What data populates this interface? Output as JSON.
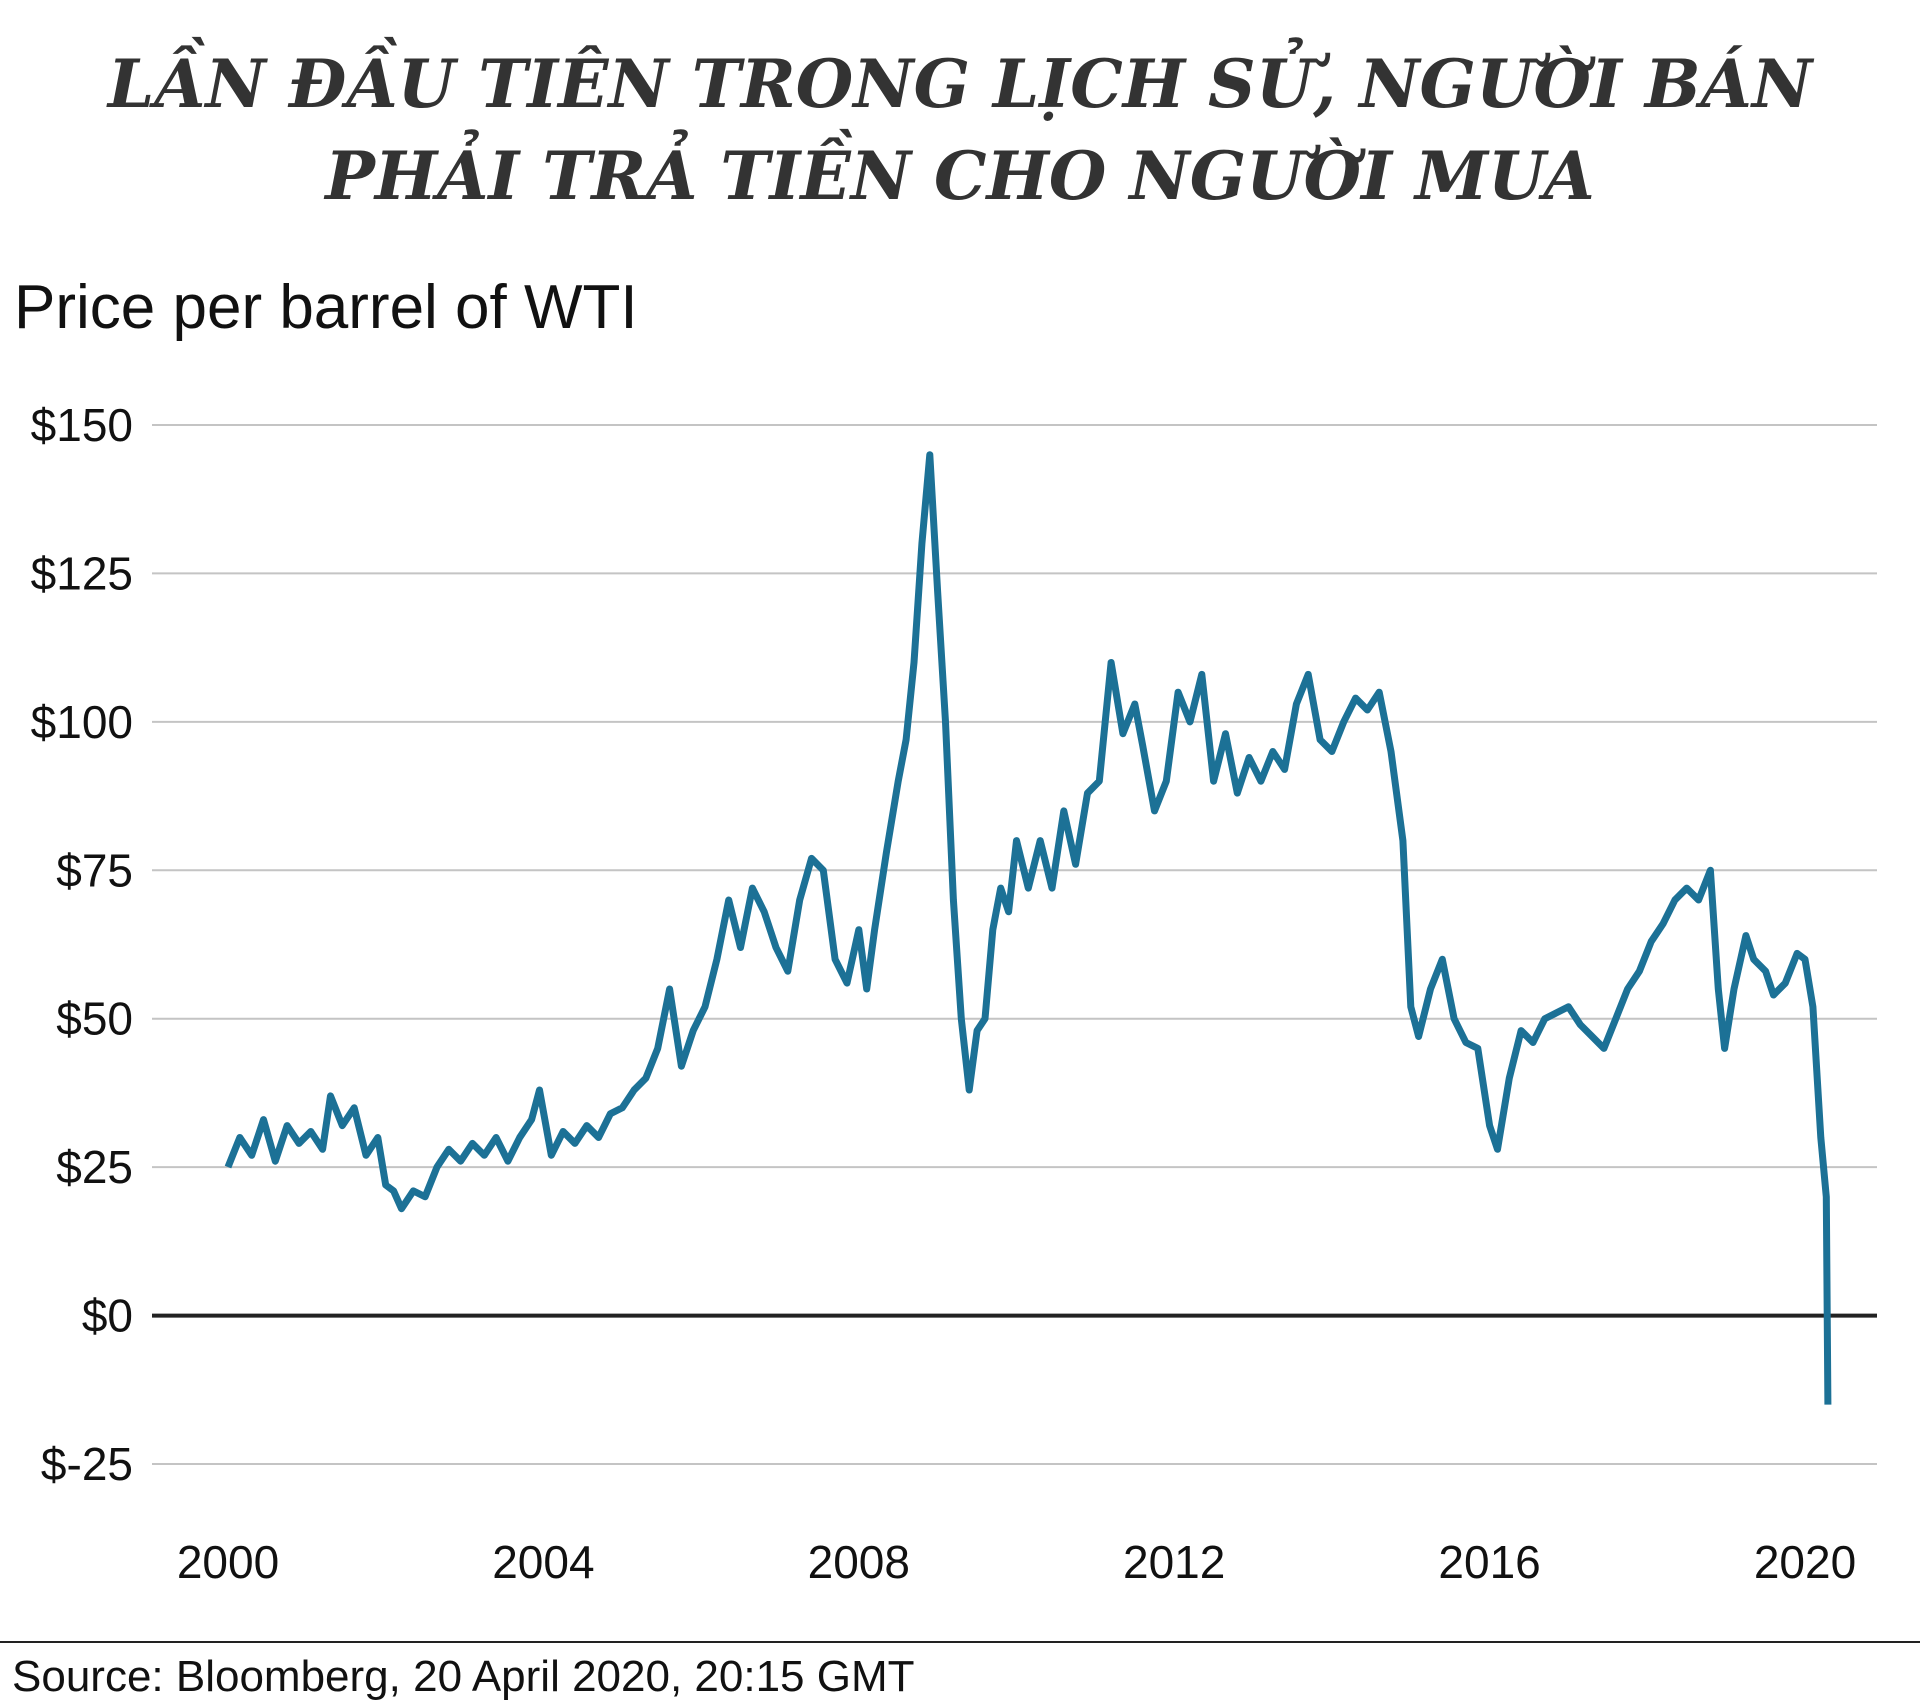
{
  "title_lines": [
    "LẦN ĐẦU TIÊN TRONG LỊCH SỬ, NGƯỜI BÁN",
    "PHẢI TRẢ TIỀN CHO NGƯỜI MUA"
  ],
  "subtitle": "Price per barrel of WTI",
  "source": "Source: Bloomberg, 20 April 2020, 20:15 GMT",
  "colors": {
    "line": "#1c7196",
    "grid": "#c4c4c4",
    "zero": "#222222"
  },
  "chart_data": {
    "type": "line",
    "title": "LẦN ĐẦU TIÊN TRONG LỊCH SỬ, NGƯỜI BÁN PHẢI TRẢ TIỀN CHO NGƯỜI MUA",
    "ylabel": "Price per barrel of WTI",
    "xlabel": "",
    "xlim": [
      2000,
      2020.6
    ],
    "ylim": [
      -25,
      150
    ],
    "grid": true,
    "y_ticks": [
      150,
      125,
      100,
      75,
      50,
      25,
      0,
      -25
    ],
    "y_tick_labels": [
      "$150",
      "$125",
      "$100",
      "$75",
      "$50",
      "$25",
      "$0",
      "$-25"
    ],
    "x_ticks": [
      2000,
      2004,
      2008,
      2012,
      2016,
      2020
    ],
    "x_tick_labels": [
      "2000",
      "2004",
      "2008",
      "2012",
      "2016",
      "2020"
    ],
    "series": [
      {
        "values": [
          [
            2000.0,
            25
          ],
          [
            2000.15,
            30
          ],
          [
            2000.3,
            27
          ],
          [
            2000.45,
            33
          ],
          [
            2000.6,
            26
          ],
          [
            2000.75,
            32
          ],
          [
            2000.9,
            29
          ],
          [
            2001.05,
            31
          ],
          [
            2001.2,
            28
          ],
          [
            2001.3,
            37
          ],
          [
            2001.45,
            32
          ],
          [
            2001.6,
            35
          ],
          [
            2001.75,
            27
          ],
          [
            2001.9,
            30
          ],
          [
            2002.0,
            22
          ],
          [
            2002.1,
            21
          ],
          [
            2002.2,
            18
          ],
          [
            2002.35,
            21
          ],
          [
            2002.5,
            20
          ],
          [
            2002.65,
            25
          ],
          [
            2002.8,
            28
          ],
          [
            2002.95,
            26
          ],
          [
            2003.1,
            29
          ],
          [
            2003.25,
            27
          ],
          [
            2003.4,
            30
          ],
          [
            2003.55,
            26
          ],
          [
            2003.7,
            30
          ],
          [
            2003.85,
            33
          ],
          [
            2003.95,
            38
          ],
          [
            2004.1,
            27
          ],
          [
            2004.25,
            31
          ],
          [
            2004.4,
            29
          ],
          [
            2004.55,
            32
          ],
          [
            2004.7,
            30
          ],
          [
            2004.85,
            34
          ],
          [
            2005.0,
            35
          ],
          [
            2005.15,
            38
          ],
          [
            2005.3,
            40
          ],
          [
            2005.45,
            45
          ],
          [
            2005.6,
            55
          ],
          [
            2005.75,
            42
          ],
          [
            2005.9,
            48
          ],
          [
            2006.05,
            52
          ],
          [
            2006.2,
            60
          ],
          [
            2006.35,
            70
          ],
          [
            2006.5,
            62
          ],
          [
            2006.65,
            72
          ],
          [
            2006.8,
            68
          ],
          [
            2006.95,
            62
          ],
          [
            2007.1,
            58
          ],
          [
            2007.25,
            70
          ],
          [
            2007.4,
            77
          ],
          [
            2007.55,
            75
          ],
          [
            2007.7,
            60
          ],
          [
            2007.85,
            56
          ],
          [
            2008.0,
            65
          ],
          [
            2008.1,
            55
          ],
          [
            2008.2,
            65
          ],
          [
            2008.35,
            78
          ],
          [
            2008.5,
            90
          ],
          [
            2008.6,
            97
          ],
          [
            2008.7,
            110
          ],
          [
            2008.8,
            130
          ],
          [
            2008.9,
            145
          ],
          [
            2009.0,
            122
          ],
          [
            2009.1,
            100
          ],
          [
            2009.2,
            70
          ],
          [
            2009.3,
            50
          ],
          [
            2009.4,
            38
          ],
          [
            2009.5,
            48
          ],
          [
            2009.6,
            50
          ],
          [
            2009.7,
            65
          ],
          [
            2009.8,
            72
          ],
          [
            2009.9,
            68
          ],
          [
            2010.0,
            80
          ],
          [
            2010.15,
            72
          ],
          [
            2010.3,
            80
          ],
          [
            2010.45,
            72
          ],
          [
            2010.6,
            85
          ],
          [
            2010.75,
            76
          ],
          [
            2010.9,
            88
          ],
          [
            2011.05,
            90
          ],
          [
            2011.2,
            110
          ],
          [
            2011.35,
            98
          ],
          [
            2011.5,
            103
          ],
          [
            2011.6,
            96
          ],
          [
            2011.75,
            85
          ],
          [
            2011.9,
            90
          ],
          [
            2012.05,
            105
          ],
          [
            2012.2,
            100
          ],
          [
            2012.35,
            108
          ],
          [
            2012.5,
            90
          ],
          [
            2012.65,
            98
          ],
          [
            2012.8,
            88
          ],
          [
            2012.95,
            94
          ],
          [
            2013.1,
            90
          ],
          [
            2013.25,
            95
          ],
          [
            2013.4,
            92
          ],
          [
            2013.55,
            103
          ],
          [
            2013.7,
            108
          ],
          [
            2013.85,
            97
          ],
          [
            2014.0,
            95
          ],
          [
            2014.15,
            100
          ],
          [
            2014.3,
            104
          ],
          [
            2014.45,
            102
          ],
          [
            2014.6,
            105
          ],
          [
            2014.75,
            95
          ],
          [
            2014.9,
            80
          ],
          [
            2015.0,
            52
          ],
          [
            2015.1,
            47
          ],
          [
            2015.25,
            55
          ],
          [
            2015.4,
            60
          ],
          [
            2015.55,
            50
          ],
          [
            2015.7,
            46
          ],
          [
            2015.85,
            45
          ],
          [
            2016.0,
            32
          ],
          [
            2016.1,
            28
          ],
          [
            2016.25,
            40
          ],
          [
            2016.4,
            48
          ],
          [
            2016.55,
            46
          ],
          [
            2016.7,
            50
          ],
          [
            2016.85,
            51
          ],
          [
            2017.0,
            52
          ],
          [
            2017.15,
            49
          ],
          [
            2017.3,
            47
          ],
          [
            2017.45,
            45
          ],
          [
            2017.6,
            50
          ],
          [
            2017.75,
            55
          ],
          [
            2017.9,
            58
          ],
          [
            2018.05,
            63
          ],
          [
            2018.2,
            66
          ],
          [
            2018.35,
            70
          ],
          [
            2018.5,
            72
          ],
          [
            2018.65,
            70
          ],
          [
            2018.8,
            75
          ],
          [
            2018.9,
            55
          ],
          [
            2018.98,
            45
          ],
          [
            2019.1,
            55
          ],
          [
            2019.25,
            64
          ],
          [
            2019.35,
            60
          ],
          [
            2019.5,
            58
          ],
          [
            2019.6,
            54
          ],
          [
            2019.75,
            56
          ],
          [
            2019.9,
            61
          ],
          [
            2020.0,
            60
          ],
          [
            2020.1,
            52
          ],
          [
            2020.2,
            30
          ],
          [
            2020.27,
            20
          ],
          [
            2020.29,
            -15
          ]
        ]
      }
    ]
  }
}
